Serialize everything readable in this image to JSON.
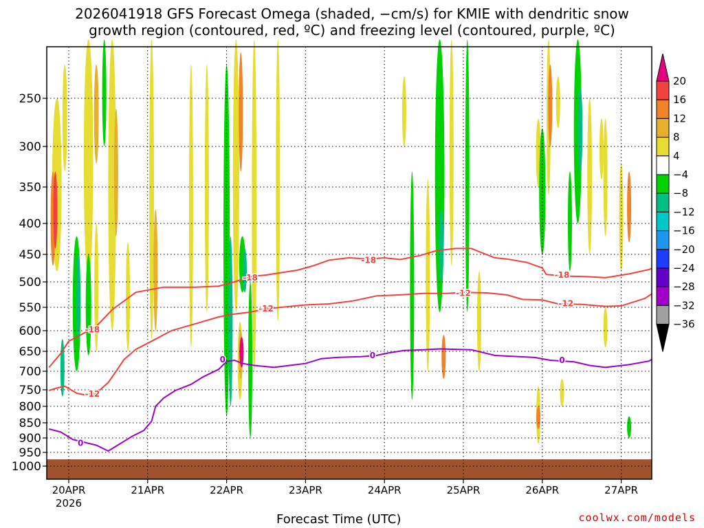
{
  "title_line1": "2026041918 GFS Forecast Omega (shaded, −cm/s) for KMIE with dendritic snow",
  "title_line2": "growth region (contoured, red, ºC) and freezing level (contoured, purple, ºC)",
  "credit": "coolwx.com/models",
  "colors": {
    "dendritic_contour": "#f0413c",
    "freezing_contour": "#9b00c8",
    "terrain": "#a0522d",
    "grid": "#000000"
  },
  "chart_data": {
    "type": "heatmap",
    "xlabel": "Forecast Time (UTC)",
    "ylabel": "",
    "x_range": [
      "2026-04-19 18Z",
      "2026-04-27 18Z"
    ],
    "x_ticks": [
      {
        "label": "20APR",
        "sub": "2026",
        "day": 0
      },
      {
        "label": "21APR",
        "day": 1
      },
      {
        "label": "22APR",
        "day": 2
      },
      {
        "label": "23APR",
        "day": 3
      },
      {
        "label": "24APR",
        "day": 4
      },
      {
        "label": "25APR",
        "day": 5
      },
      {
        "label": "26APR",
        "day": 6
      },
      {
        "label": "27APR",
        "day": 7
      }
    ],
    "y_axis": "pressure (hPa), inverted",
    "y_ticks": [
      250,
      300,
      350,
      400,
      450,
      500,
      550,
      600,
      650,
      700,
      750,
      800,
      850,
      900,
      950,
      1000
    ],
    "y_range": [
      1000,
      200
    ],
    "colorbar": {
      "levels": [
        "20",
        "16",
        "12",
        "8",
        "4",
        "−4",
        "−8",
        "−12",
        "−16",
        "−20",
        "−24",
        "−28",
        "−32",
        "−36"
      ],
      "colors": [
        "#e6007e",
        "#f0413c",
        "#f08228",
        "#e6af2d",
        "#e6dc32",
        "#ffffff",
        "#00d200",
        "#00be82",
        "#00c8c8",
        "#1e96f0",
        "#1e3cff",
        "#6400c8",
        "#a000c8",
        "#a0a0a0",
        "#000000"
      ]
    },
    "contours": [
      {
        "name": "-18",
        "color": "red",
        "points": [
          [
            -0.25,
            690
          ],
          [
            -0.1,
            655
          ],
          [
            0.0,
            625
          ],
          [
            0.15,
            610
          ],
          [
            0.35,
            590
          ],
          [
            0.55,
            555
          ],
          [
            0.85,
            520
          ],
          [
            1.2,
            510
          ],
          [
            1.6,
            510
          ],
          [
            1.9,
            508
          ],
          [
            2.1,
            500
          ],
          [
            2.3,
            490
          ],
          [
            2.5,
            487
          ],
          [
            2.9,
            478
          ],
          [
            3.1,
            470
          ],
          [
            3.3,
            460
          ],
          [
            3.55,
            456
          ],
          [
            3.8,
            458
          ],
          [
            4.0,
            456
          ],
          [
            4.2,
            459
          ],
          [
            4.45,
            452
          ],
          [
            4.65,
            444
          ],
          [
            4.9,
            440
          ],
          [
            5.1,
            440
          ],
          [
            5.25,
            448
          ],
          [
            5.4,
            456
          ],
          [
            5.55,
            458
          ],
          [
            5.8,
            464
          ],
          [
            6.0,
            474
          ],
          [
            6.05,
            486
          ],
          [
            6.3,
            489
          ],
          [
            6.55,
            490
          ],
          [
            6.8,
            492
          ],
          [
            7.1,
            485
          ],
          [
            7.35,
            477
          ],
          [
            7.5,
            475
          ]
        ],
        "label_at": [
          [
            0.3,
            598
          ],
          [
            2.3,
            492
          ],
          [
            3.8,
            460
          ],
          [
            6.25,
            487
          ]
        ]
      },
      {
        "name": "-12",
        "color": "red",
        "points": [
          [
            -0.25,
            752
          ],
          [
            -0.15,
            745
          ],
          [
            -0.05,
            740
          ],
          [
            0.1,
            760
          ],
          [
            0.2,
            765
          ],
          [
            0.35,
            760
          ],
          [
            0.5,
            730
          ],
          [
            0.6,
            700
          ],
          [
            0.7,
            670
          ],
          [
            0.85,
            645
          ],
          [
            1.05,
            625
          ],
          [
            1.3,
            600
          ],
          [
            1.6,
            585
          ],
          [
            1.9,
            570
          ],
          [
            2.05,
            565
          ],
          [
            2.3,
            560
          ],
          [
            2.5,
            553
          ],
          [
            3.0,
            545
          ],
          [
            3.3,
            543
          ],
          [
            3.6,
            537
          ],
          [
            3.9,
            527
          ],
          [
            4.2,
            525
          ],
          [
            4.5,
            522
          ],
          [
            4.8,
            522
          ],
          [
            5.0,
            520
          ],
          [
            5.3,
            521
          ],
          [
            5.55,
            525
          ],
          [
            5.75,
            534
          ],
          [
            6.0,
            535
          ],
          [
            6.2,
            543
          ],
          [
            6.5,
            544
          ],
          [
            6.8,
            548
          ],
          [
            7.0,
            547
          ],
          [
            7.3,
            532
          ],
          [
            7.5,
            523
          ]
        ],
        "label_at": [
          [
            0.3,
            762
          ],
          [
            2.5,
            553
          ],
          [
            5.0,
            522
          ],
          [
            6.3,
            542
          ]
        ]
      },
      {
        "name": "0",
        "color": "purple",
        "points": [
          [
            -0.25,
            870
          ],
          [
            -0.1,
            880
          ],
          [
            0.05,
            905
          ],
          [
            0.2,
            915
          ],
          [
            0.35,
            925
          ],
          [
            0.5,
            945
          ],
          [
            0.65,
            920
          ],
          [
            0.8,
            895
          ],
          [
            0.95,
            875
          ],
          [
            1.05,
            845
          ],
          [
            1.1,
            800
          ],
          [
            1.2,
            775
          ],
          [
            1.35,
            752
          ],
          [
            1.55,
            735
          ],
          [
            1.7,
            715
          ],
          [
            1.9,
            695
          ],
          [
            2.0,
            675
          ],
          [
            2.1,
            672
          ],
          [
            2.2,
            680
          ],
          [
            2.35,
            685
          ],
          [
            2.6,
            690
          ],
          [
            2.8,
            685
          ],
          [
            3.0,
            680
          ],
          [
            3.2,
            668
          ],
          [
            3.4,
            665
          ],
          [
            3.7,
            663
          ],
          [
            3.9,
            660
          ],
          [
            4.05,
            654
          ],
          [
            4.25,
            648
          ],
          [
            4.5,
            646
          ],
          [
            4.7,
            644
          ],
          [
            4.9,
            645
          ],
          [
            5.1,
            646
          ],
          [
            5.4,
            660
          ],
          [
            5.7,
            663
          ],
          [
            5.9,
            665
          ],
          [
            6.1,
            672
          ],
          [
            6.4,
            676
          ],
          [
            6.6,
            685
          ],
          [
            6.8,
            690
          ],
          [
            7.1,
            683
          ],
          [
            7.35,
            674
          ],
          [
            7.5,
            670
          ]
        ],
        "label_at": [
          [
            0.15,
            918
          ],
          [
            1.95,
            670
          ],
          [
            3.85,
            660
          ],
          [
            6.25,
            672
          ]
        ]
      }
    ],
    "terrain_top_hPa": 975
  }
}
